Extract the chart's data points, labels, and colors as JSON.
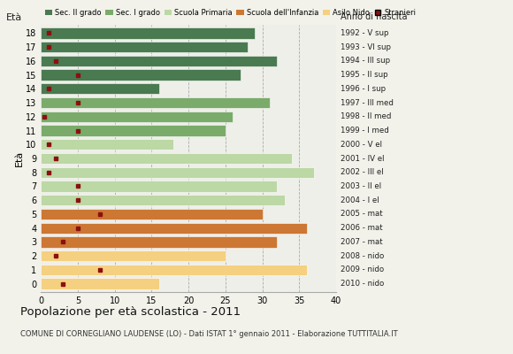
{
  "ages": [
    18,
    17,
    16,
    15,
    14,
    13,
    12,
    11,
    10,
    9,
    8,
    7,
    6,
    5,
    4,
    3,
    2,
    1,
    0
  ],
  "bar_values": [
    29,
    28,
    32,
    27,
    16,
    31,
    26,
    25,
    18,
    34,
    37,
    32,
    33,
    30,
    36,
    32,
    25,
    36,
    16
  ],
  "right_labels": [
    "1992 - V sup",
    "1993 - VI sup",
    "1994 - III sup",
    "1995 - II sup",
    "1996 - I sup",
    "1997 - III med",
    "1998 - II med",
    "1999 - I med",
    "2000 - V el",
    "2001 - IV el",
    "2002 - III el",
    "2003 - II el",
    "2004 - I el",
    "2005 - mat",
    "2006 - mat",
    "2007 - mat",
    "2008 - nido",
    "2009 - nido",
    "2010 - nido"
  ],
  "colors": {
    "sec2": "#4a7a50",
    "sec1": "#7aab6a",
    "primaria": "#bcd8a5",
    "infanzia": "#cc7733",
    "nido": "#f5d080",
    "stranieri": "#8b1010"
  },
  "bar_colors": [
    "#4a7a50",
    "#4a7a50",
    "#4a7a50",
    "#4a7a50",
    "#4a7a50",
    "#7aab6a",
    "#7aab6a",
    "#7aab6a",
    "#bcd8a5",
    "#bcd8a5",
    "#bcd8a5",
    "#bcd8a5",
    "#bcd8a5",
    "#cc7733",
    "#cc7733",
    "#cc7733",
    "#f5d080",
    "#f5d080",
    "#f5d080"
  ],
  "stranieri_values": [
    1,
    1,
    2,
    5,
    1,
    5,
    0.4,
    5,
    1,
    2,
    1,
    5,
    5,
    8,
    5,
    3,
    2,
    8,
    3
  ],
  "legend_labels": [
    "Sec. II grado",
    "Sec. I grado",
    "Scuola Primaria",
    "Scuola dell'Infanzia",
    "Asilo Nido",
    "Stranieri"
  ],
  "legend_colors": [
    "#4a7a50",
    "#7aab6a",
    "#bcd8a5",
    "#cc7733",
    "#f5d080",
    "#8b1010"
  ],
  "ylabel": "Età",
  "right_ylabel": "Anno di nascita",
  "title": "Popolazione per età scolastica - 2011",
  "subtitle": "COMUNE DI CORNEGLIANO LAUDENSE (LO) - Dati ISTAT 1° gennaio 2011 - Elaborazione TUTTITALIA.IT",
  "xlim": [
    0,
    40
  ],
  "xticks": [
    0,
    5,
    10,
    15,
    20,
    25,
    30,
    35,
    40
  ],
  "bg_color": "#efefea",
  "fig_bg": "#f2f2ea"
}
